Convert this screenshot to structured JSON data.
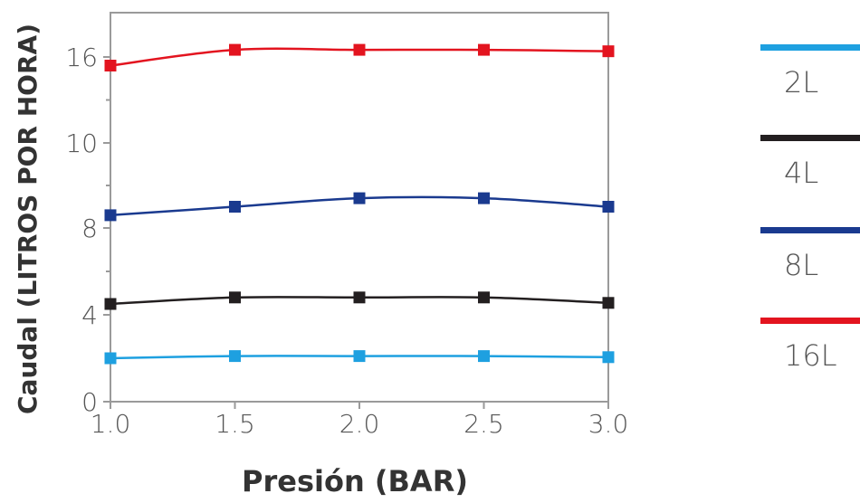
{
  "chart_data": {
    "type": "line",
    "xlabel": "Presión (BAR)",
    "ylabel": "Caudal (LITROS POR HORA)",
    "x": [
      1.0,
      1.5,
      2.0,
      2.5,
      3.0
    ],
    "x_tick_labels": [
      "1.0",
      "1.5",
      "2.0",
      "2.5",
      "3.0"
    ],
    "y_tick_labels": [
      "0",
      "4",
      "8",
      "10",
      "16"
    ],
    "grid": false,
    "legend_position": "right",
    "series": [
      {
        "name": "2L",
        "color": "#1ea0e0",
        "values": [
          2.0,
          2.1,
          2.1,
          2.1,
          2.05
        ]
      },
      {
        "name": "4L",
        "color": "#231f20",
        "values": [
          4.5,
          4.8,
          4.8,
          4.8,
          4.55
        ]
      },
      {
        "name": "8L",
        "color": "#1a3a8f",
        "values": [
          8.3,
          8.5,
          8.7,
          8.7,
          8.5
        ]
      },
      {
        "name": "16L",
        "color": "#e3141f",
        "values": [
          15.4,
          16.5,
          16.5,
          16.5,
          16.4
        ]
      }
    ]
  }
}
